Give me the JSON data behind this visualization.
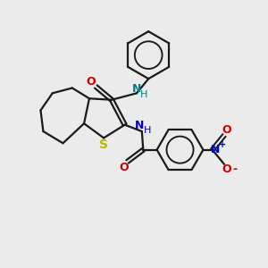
{
  "bg_color": "#ebebeb",
  "bond_color": "#1a1a1a",
  "S_color": "#b8b800",
  "N_color": "#0000cc",
  "O_color": "#cc0000",
  "NH_color": "#008080",
  "figsize": [
    3.0,
    3.0
  ],
  "dpi": 100,
  "xlim": [
    0,
    10
  ],
  "ylim": [
    0,
    10
  ]
}
